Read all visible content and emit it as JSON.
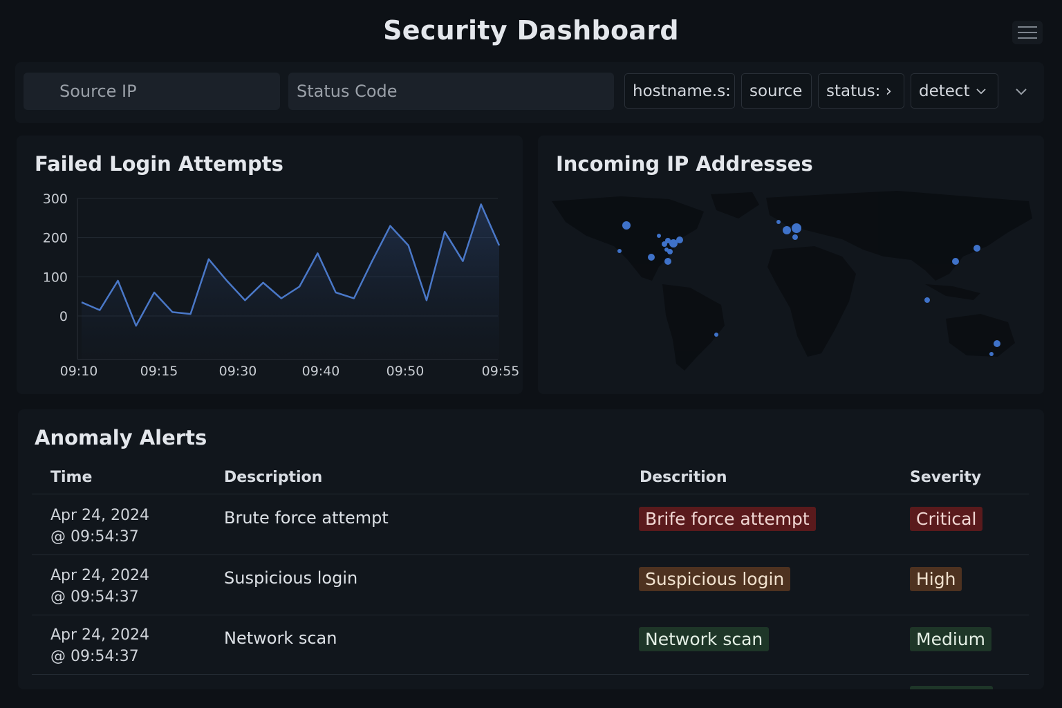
{
  "header": {
    "title": "Security Dashboard"
  },
  "filters": {
    "source_ip_placeholder": "Source IP",
    "status_code_placeholder": "Status Code",
    "chips": [
      "hostname.s:",
      "source",
      "status: ›",
      "detect"
    ]
  },
  "failed_logins": {
    "title": "Failed Login Attempts"
  },
  "chart_data": {
    "type": "area",
    "title": "Failed Login Attempts",
    "xlabel": "",
    "ylabel": "",
    "ylim": [
      -100,
      300
    ],
    "yticks": [
      300,
      200,
      100,
      0
    ],
    "x_tick_labels": [
      "09:10",
      "09:15",
      "09:30",
      "09:40",
      "09:50",
      "09:55"
    ],
    "series": [
      {
        "values": [
          35,
          15,
          90,
          -25,
          60,
          10,
          5,
          145,
          90,
          40,
          85,
          45,
          75,
          160,
          60,
          45,
          140,
          230,
          180,
          40,
          215,
          140,
          285,
          180
        ]
      }
    ],
    "grid": true
  },
  "map": {
    "title": "Incoming IP Addresses"
  },
  "alerts": {
    "title": "Anomaly Alerts",
    "columns": [
      "Time",
      "Description",
      "Descrition",
      "Severity"
    ],
    "rows": [
      {
        "date": "Apr 24, 2024",
        "time": "@ 09:54:37",
        "description": "Brute force attempt",
        "tag": "Brife force attempt",
        "severity": "Critical"
      },
      {
        "date": "Apr 24, 2024",
        "time": "@ 09:54:37",
        "description": "Suspicious login",
        "tag": "Suspicious login",
        "severity": "High"
      },
      {
        "date": "Apr 24, 2024",
        "time": "@ 09:54:37",
        "description": "Network scan",
        "tag": "Network scan",
        "severity": "Medium"
      }
    ]
  },
  "colors": {
    "critical_bg": "#5a1a1c",
    "critical_fg": "#f0d6d2",
    "high_bg": "#4e3220",
    "high_fg": "#f1e2cf",
    "medium_bg": "#1e3628",
    "medium_fg": "#e4efe5",
    "line": "#4a78c8",
    "dot": "#3f72c9"
  }
}
